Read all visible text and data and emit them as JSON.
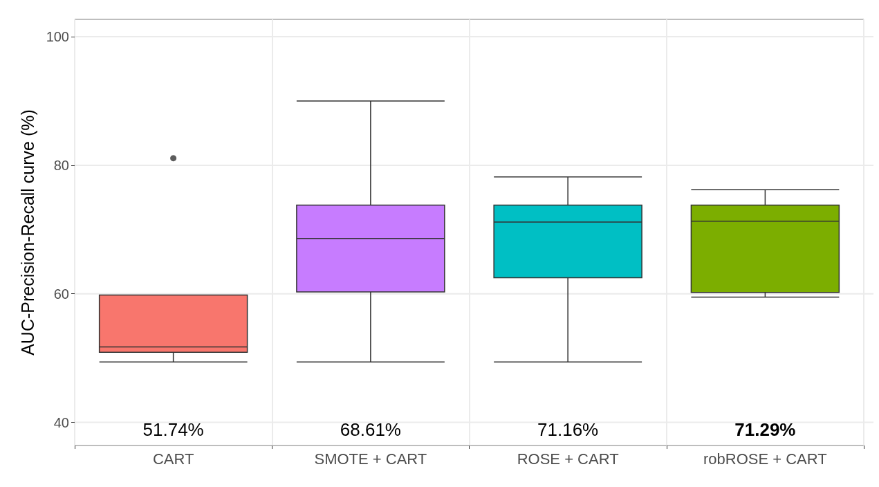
{
  "chart_data": {
    "type": "box",
    "ylabel": "AUC-Precision-Recall curve (%)",
    "categories": [
      "CART",
      "SMOTE + CART",
      "ROSE + CART",
      "robROSE + CART"
    ],
    "colors": [
      "#f8766d",
      "#c77cff",
      "#00bfc4",
      "#7cae00"
    ],
    "boxes": [
      {
        "low": 49.4,
        "q1": 50.9,
        "median": 51.74,
        "q3": 59.8,
        "high": 59.8,
        "outliers": [
          81.1
        ]
      },
      {
        "low": 49.4,
        "q1": 60.3,
        "median": 68.61,
        "q3": 73.8,
        "high": 90.0
      },
      {
        "low": 49.4,
        "q1": 62.5,
        "median": 71.16,
        "q3": 73.8,
        "high": 78.2
      },
      {
        "low": 59.5,
        "q1": 60.2,
        "median": 71.29,
        "q3": 73.8,
        "high": 76.2
      }
    ],
    "annotations": [
      "51.74%",
      "68.61%",
      "71.16%",
      "71.29%"
    ],
    "ylim": [
      36.4,
      102.7
    ],
    "yticks": [
      40,
      60,
      80,
      100
    ],
    "grid": true
  }
}
